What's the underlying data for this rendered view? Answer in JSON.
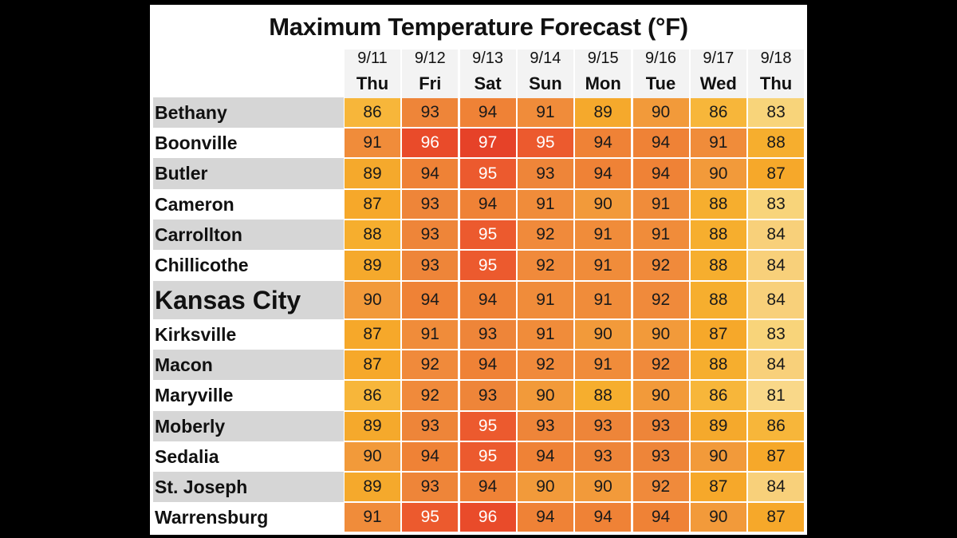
{
  "title": "Maximum Temperature Forecast (°F)",
  "columns": [
    {
      "date": "9/11",
      "day": "Thu"
    },
    {
      "date": "9/12",
      "day": "Fri"
    },
    {
      "date": "9/13",
      "day": "Sat"
    },
    {
      "date": "9/14",
      "day": "Sun"
    },
    {
      "date": "9/15",
      "day": "Mon"
    },
    {
      "date": "9/16",
      "day": "Tue"
    },
    {
      "date": "9/17",
      "day": "Wed"
    },
    {
      "date": "9/18",
      "day": "Thu"
    }
  ],
  "rows": [
    {
      "city": "Bethany",
      "values": [
        86,
        93,
        94,
        91,
        89,
        90,
        86,
        83
      ]
    },
    {
      "city": "Boonville",
      "values": [
        91,
        96,
        97,
        95,
        94,
        94,
        91,
        88
      ]
    },
    {
      "city": "Butler",
      "values": [
        89,
        94,
        95,
        93,
        94,
        94,
        90,
        87
      ]
    },
    {
      "city": "Cameron",
      "values": [
        87,
        93,
        94,
        91,
        90,
        91,
        88,
        83
      ]
    },
    {
      "city": "Carrollton",
      "values": [
        88,
        93,
        95,
        92,
        91,
        91,
        88,
        84
      ]
    },
    {
      "city": "Chillicothe",
      "values": [
        89,
        93,
        95,
        92,
        91,
        92,
        88,
        84
      ]
    },
    {
      "city": "Kansas City",
      "values": [
        90,
        94,
        94,
        91,
        91,
        92,
        88,
        84
      ],
      "emphasis": true
    },
    {
      "city": "Kirksville",
      "values": [
        87,
        91,
        93,
        91,
        90,
        90,
        87,
        83
      ]
    },
    {
      "city": "Macon",
      "values": [
        87,
        92,
        94,
        92,
        91,
        92,
        88,
        84
      ]
    },
    {
      "city": "Maryville",
      "values": [
        86,
        92,
        93,
        90,
        88,
        90,
        86,
        81
      ]
    },
    {
      "city": "Moberly",
      "values": [
        89,
        93,
        95,
        93,
        93,
        93,
        89,
        86
      ]
    },
    {
      "city": "Sedalia",
      "values": [
        90,
        94,
        95,
        94,
        93,
        93,
        90,
        87
      ]
    },
    {
      "city": "St. Joseph",
      "values": [
        89,
        93,
        94,
        90,
        90,
        92,
        87,
        84
      ]
    },
    {
      "city": "Warrensburg",
      "values": [
        91,
        95,
        96,
        94,
        94,
        94,
        90,
        87
      ]
    }
  ],
  "color_scale": {
    "81": "#f9d889",
    "83": "#f8d47a",
    "84": "#f8d07a",
    "86": "#f7b63a",
    "87": "#f6a82a",
    "88": "#f6ae2e",
    "89": "#f5a92c",
    "90": "#f29a3a",
    "91": "#f08c3a",
    "92": "#f08a3b",
    "93": "#ee8539",
    "94": "#ef8236",
    "95": "#ec5a2e",
    "96": "#e94b2a",
    "97": "#e64228"
  }
}
